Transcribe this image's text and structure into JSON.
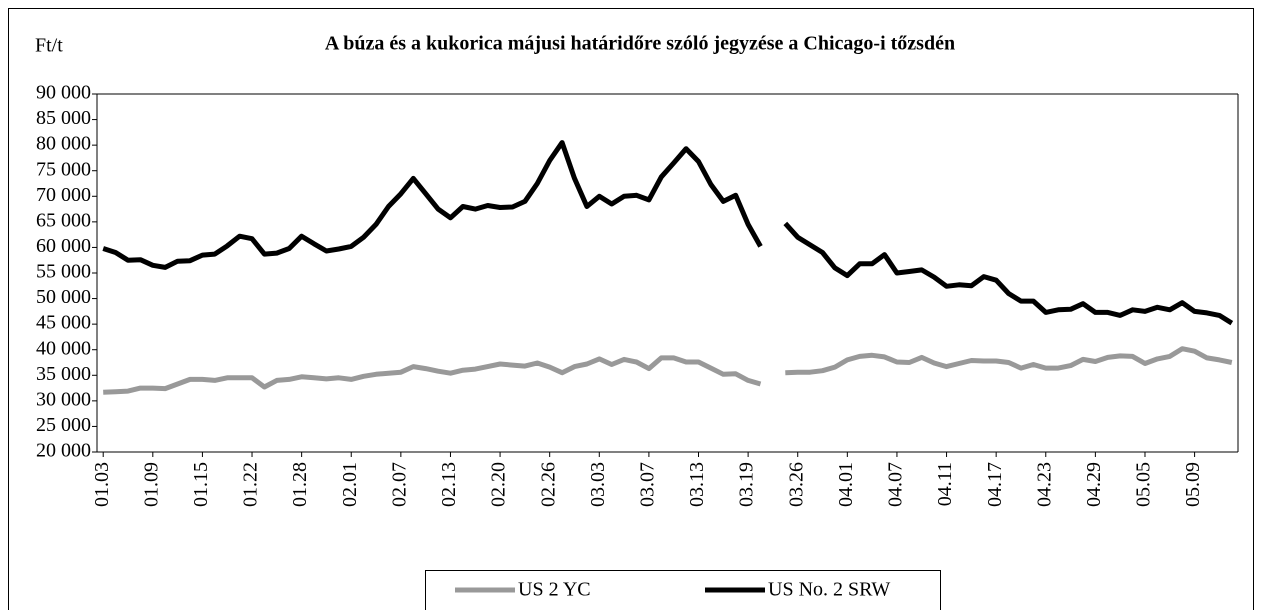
{
  "chart_data": {
    "type": "line",
    "title": "A búza és a kukorica májusi határidőre szóló jegyzése a Chicago-i tőzsdén",
    "y_label": "Ft/t",
    "categories": [
      "01.03",
      null,
      null,
      null,
      "01.09",
      null,
      null,
      null,
      "01.15",
      null,
      null,
      null,
      "01.22",
      null,
      null,
      null,
      "01.28",
      null,
      null,
      null,
      "02.01",
      null,
      null,
      null,
      "02.07",
      null,
      null,
      null,
      "02.13",
      null,
      null,
      null,
      "02.20",
      null,
      null,
      null,
      "02.26",
      null,
      null,
      null,
      "03.03",
      null,
      null,
      null,
      "03.07",
      null,
      null,
      null,
      "03.13",
      null,
      null,
      null,
      "03.19",
      null,
      null,
      null,
      "03.26",
      null,
      null,
      null,
      "04.01",
      null,
      null,
      null,
      "04.07",
      null,
      null,
      null,
      "04.11",
      null,
      null,
      null,
      "04.17",
      null,
      null,
      null,
      "04.23",
      null,
      null,
      null,
      "04.29",
      null,
      null,
      null,
      "05.05",
      null,
      null,
      null,
      "05.09",
      null,
      null,
      null
    ],
    "series": [
      {
        "name": "US 2 YC",
        "color": "#999999",
        "values": [
          31700,
          31800,
          31900,
          32500,
          32500,
          32400,
          33300,
          34200,
          34200,
          34000,
          34500,
          34500,
          34500,
          32700,
          34000,
          34200,
          34700,
          34500,
          34300,
          34500,
          34200,
          34800,
          35200,
          35400,
          35600,
          36700,
          36300,
          35800,
          35400,
          36000,
          36200,
          36700,
          37200,
          37000,
          36800,
          37400,
          36600,
          35500,
          36700,
          37200,
          38200,
          37100,
          38100,
          37600,
          36300,
          38400,
          38400,
          37600,
          37600,
          36400,
          35200,
          35300,
          34000,
          33300,
          null,
          35500,
          35600,
          35600,
          35900,
          36600,
          38000,
          38700,
          38900,
          38600,
          37600,
          37500,
          38500,
          37400,
          36700,
          37300,
          37900,
          37800,
          37800,
          37500,
          36400,
          37100,
          36400,
          36400,
          36900,
          38100,
          37700,
          38500,
          38800,
          38700,
          37300,
          38200,
          38700,
          40200,
          39700,
          38400,
          38000,
          37500
        ]
      },
      {
        "name": "US No. 2 SRW",
        "color": "#000000",
        "values": [
          59800,
          59000,
          57500,
          57600,
          56500,
          56100,
          57300,
          57400,
          58500,
          58700,
          60300,
          62200,
          61700,
          58700,
          58900,
          59800,
          62200,
          60700,
          59300,
          59700,
          60200,
          62000,
          64500,
          68000,
          70500,
          73500,
          70500,
          67500,
          65800,
          68000,
          67500,
          68200,
          67800,
          67900,
          69000,
          72500,
          77000,
          80500,
          73500,
          68000,
          70000,
          68500,
          70000,
          70200,
          69300,
          73800,
          76500,
          79300,
          76800,
          72300,
          69000,
          70200,
          64500,
          60200,
          null,
          64700,
          62000,
          60500,
          59000,
          56000,
          54500,
          56800,
          56800,
          58600,
          55000,
          55300,
          55600,
          54200,
          52400,
          52700,
          52500,
          54300,
          53600,
          51000,
          49500,
          49500,
          47300,
          47800,
          47900,
          49000,
          47300,
          47300,
          46700,
          47800,
          47500,
          48300,
          47800,
          49200,
          47500,
          47200,
          46700,
          45200
        ]
      }
    ],
    "ylim": [
      20000,
      90000
    ],
    "yticks": [
      {
        "value": 20000,
        "label": "20 000"
      },
      {
        "value": 25000,
        "label": "25 000"
      },
      {
        "value": 30000,
        "label": "30 000"
      },
      {
        "value": 35000,
        "label": "35 000"
      },
      {
        "value": 40000,
        "label": "40 000"
      },
      {
        "value": 45000,
        "label": "45 000"
      },
      {
        "value": 50000,
        "label": "50 000"
      },
      {
        "value": 55000,
        "label": "55 000"
      },
      {
        "value": 60000,
        "label": "60 000"
      },
      {
        "value": 65000,
        "label": "65 000"
      },
      {
        "value": 70000,
        "label": "70 000"
      },
      {
        "value": 75000,
        "label": "75 000"
      },
      {
        "value": 80000,
        "label": "80 000"
      },
      {
        "value": 85000,
        "label": "85 000"
      },
      {
        "value": 90000,
        "label": "90 000"
      }
    ],
    "grid": false,
    "legend": "bottom"
  }
}
